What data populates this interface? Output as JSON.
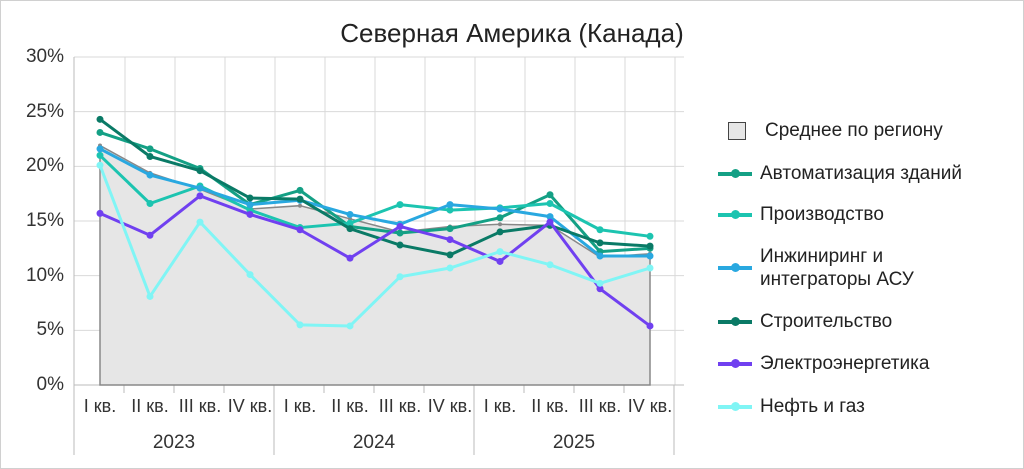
{
  "chart_data": {
    "type": "line",
    "title": "Северная Америка (Канада)",
    "ylim": [
      0,
      30
    ],
    "yticks": [
      "0%",
      "5%",
      "10%",
      "15%",
      "20%",
      "25%",
      "30%"
    ],
    "categories": [
      "I кв.",
      "II кв.",
      "III кв.",
      "IV кв.",
      "I кв.",
      "II кв.",
      "III кв.",
      "IV кв.",
      "I кв.",
      "II кв.",
      "III кв.",
      "IV кв."
    ],
    "years": [
      "2023",
      "2024",
      "2025"
    ],
    "grid": true,
    "legend_position": "right",
    "series": [
      {
        "name": "Среднее по региону",
        "kind": "area",
        "color": "#888888",
        "fill": "#e6e6e6",
        "values": [
          21.9,
          19.4,
          17.9,
          16.1,
          16.4,
          15.2,
          14.0,
          14.5,
          14.7,
          14.6,
          11.7,
          12.0
        ]
      },
      {
        "name": "Автоматизация зданий",
        "color": "#14a085",
        "values": [
          23.1,
          21.6,
          19.8,
          16.5,
          17.8,
          14.5,
          13.9,
          14.3,
          15.3,
          17.4,
          12.2,
          12.5
        ]
      },
      {
        "name": "Производство",
        "color": "#1cc4b0",
        "values": [
          21.0,
          16.6,
          18.2,
          16.0,
          14.4,
          14.8,
          16.5,
          16.0,
          16.2,
          16.6,
          14.2,
          13.6
        ]
      },
      {
        "name": "Инжиниринг и интеграторы АСУ",
        "color": "#29a8e0",
        "values": [
          21.6,
          19.2,
          18.0,
          16.5,
          16.9,
          15.6,
          14.7,
          16.5,
          16.1,
          15.4,
          11.8,
          11.8
        ]
      },
      {
        "name": "Строительство",
        "color": "#0a7a66",
        "values": [
          24.3,
          20.9,
          19.6,
          17.1,
          17.0,
          14.3,
          12.8,
          11.9,
          14.0,
          14.6,
          13.0,
          12.7
        ]
      },
      {
        "name": "Электроэнергетика",
        "color": "#7040f0",
        "values": [
          15.7,
          13.7,
          17.3,
          15.6,
          14.2,
          11.6,
          14.5,
          13.3,
          11.3,
          14.9,
          8.8,
          5.4
        ]
      },
      {
        "name": "Нефть и газ",
        "color": "#80f5f5",
        "values": [
          20.1,
          8.1,
          14.9,
          10.1,
          5.5,
          5.4,
          9.9,
          10.7,
          12.2,
          11.0,
          9.3,
          10.7
        ]
      }
    ]
  }
}
